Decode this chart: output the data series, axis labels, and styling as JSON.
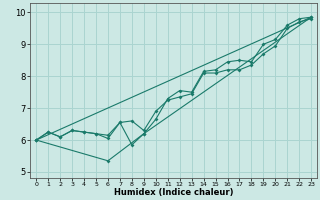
{
  "xlabel": "Humidex (Indice chaleur)",
  "bg_color": "#cce8e4",
  "grid_color": "#aad4d0",
  "line_color": "#1a7a6a",
  "xlim": [
    -0.5,
    23.5
  ],
  "ylim": [
    4.8,
    10.3
  ],
  "xticks": [
    0,
    1,
    2,
    3,
    4,
    5,
    6,
    7,
    8,
    9,
    10,
    11,
    12,
    13,
    14,
    15,
    16,
    17,
    18,
    19,
    20,
    21,
    22,
    23
  ],
  "yticks": [
    5,
    6,
    7,
    8,
    9,
    10
  ],
  "line1_x": [
    0,
    1,
    2,
    3,
    4,
    5,
    6,
    7,
    8,
    9,
    10,
    11,
    12,
    13,
    14,
    15,
    16,
    17,
    18,
    19,
    20,
    21,
    22,
    23
  ],
  "line1_y": [
    6.0,
    6.25,
    6.1,
    6.3,
    6.25,
    6.2,
    6.05,
    6.55,
    5.85,
    6.2,
    6.65,
    7.3,
    7.55,
    7.5,
    8.15,
    8.2,
    8.45,
    8.5,
    8.45,
    9.0,
    9.15,
    9.6,
    9.8,
    9.85
  ],
  "line2_x": [
    0,
    1,
    2,
    3,
    4,
    5,
    6,
    7,
    8,
    9,
    10,
    11,
    12,
    13,
    14,
    15,
    16,
    17,
    18,
    19,
    20,
    21,
    22,
    23
  ],
  "line2_y": [
    6.0,
    6.25,
    6.1,
    6.3,
    6.25,
    6.2,
    6.15,
    6.55,
    6.6,
    6.3,
    6.9,
    7.25,
    7.35,
    7.45,
    8.1,
    8.1,
    8.2,
    8.2,
    8.35,
    8.7,
    8.95,
    9.5,
    9.7,
    9.8
  ],
  "line3_x": [
    0,
    23
  ],
  "line3_y": [
    6.0,
    9.85
  ],
  "line4_x": [
    0,
    6,
    9,
    23
  ],
  "line4_y": [
    6.0,
    5.35,
    6.2,
    9.85
  ]
}
